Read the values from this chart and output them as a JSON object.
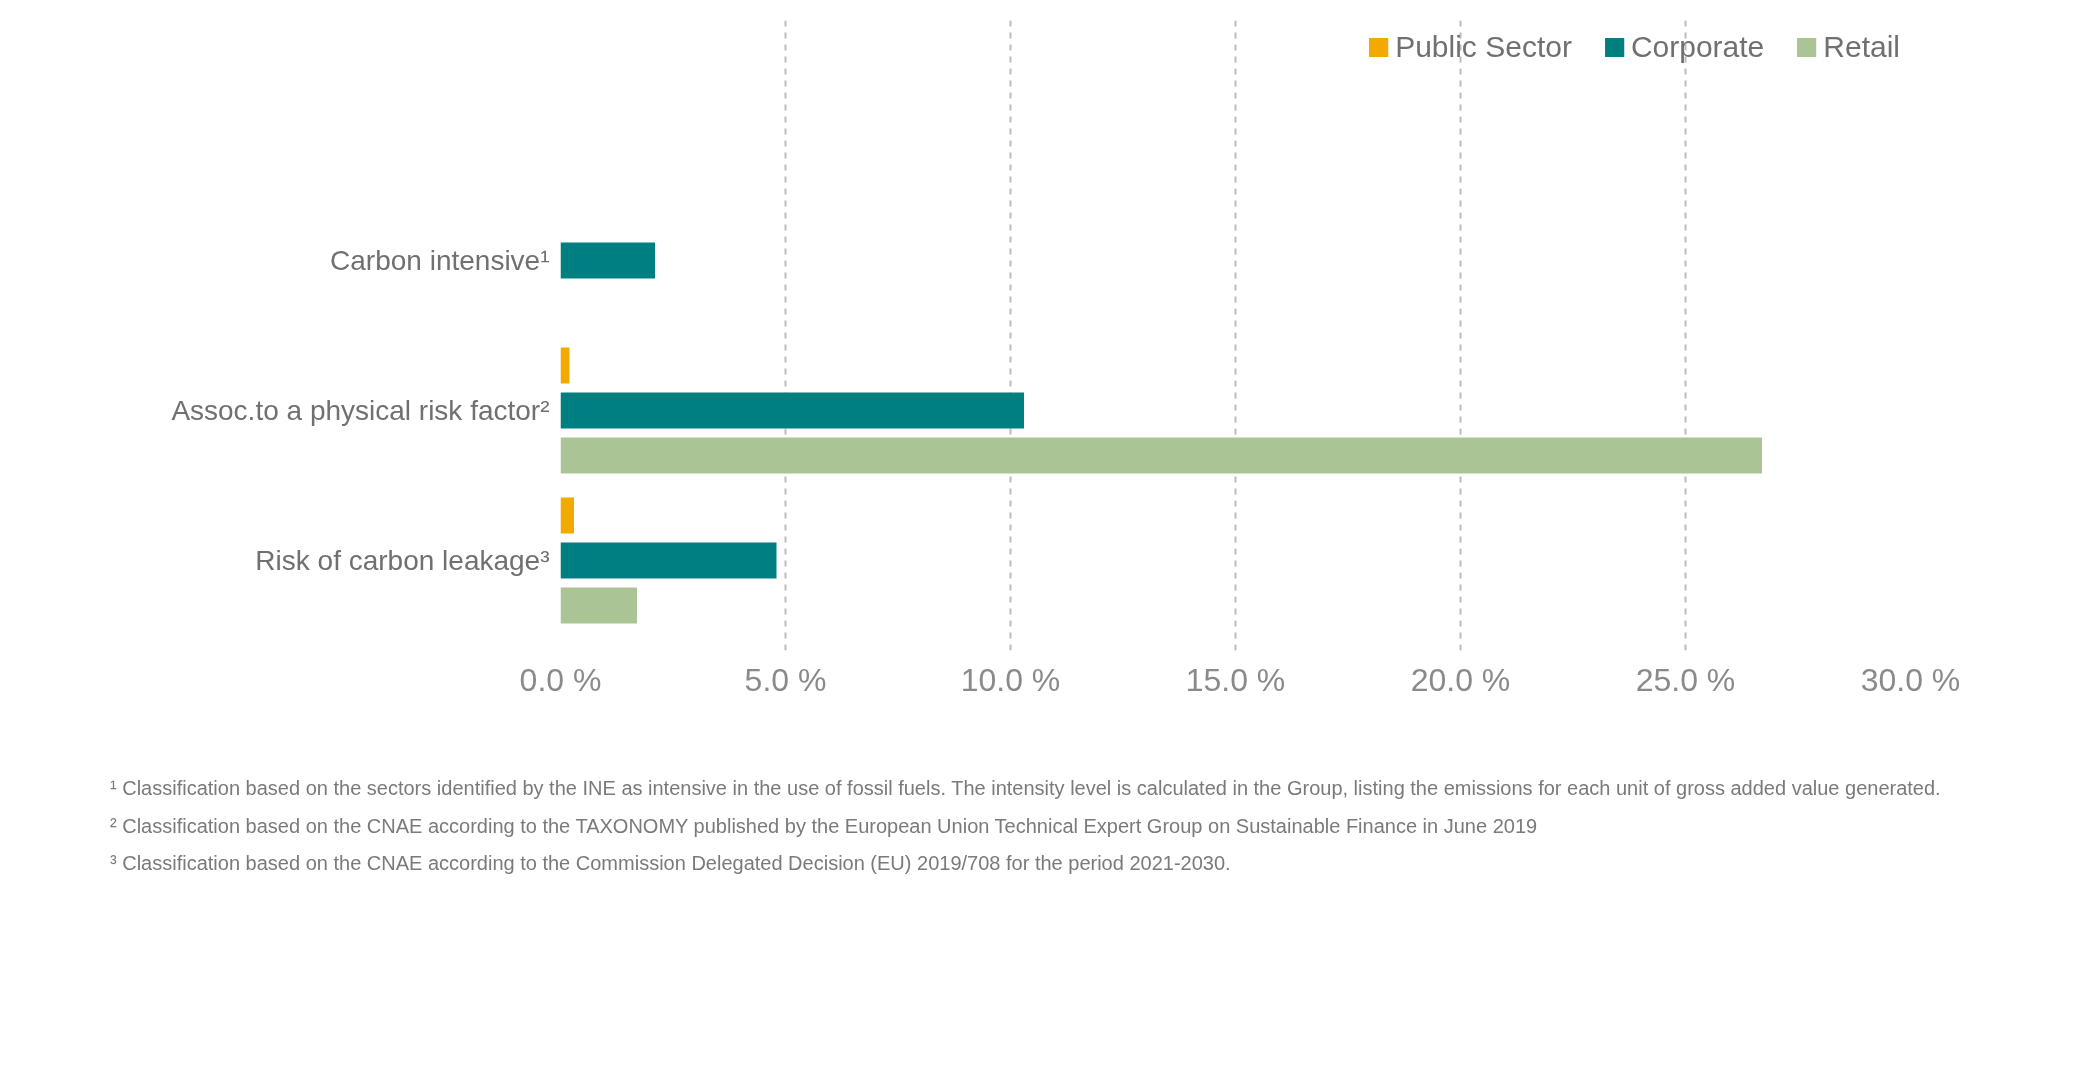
{
  "chart_data": {
    "type": "bar",
    "orientation": "horizontal",
    "categories": [
      "Carbon intensive¹",
      "Assoc.to a physical risk factor²",
      "Risk of carbon leakage³"
    ],
    "series": [
      {
        "name": "Public Sector",
        "color": "#f2a900",
        "values": [
          null,
          0.2,
          0.3
        ]
      },
      {
        "name": "Corporate",
        "color": "#007f80",
        "values": [
          2.1,
          10.3,
          4.8
        ]
      },
      {
        "name": "Retail",
        "color": "#abc495",
        "values": [
          null,
          26.7,
          1.7
        ]
      }
    ],
    "xlim": [
      0,
      30
    ],
    "xticks": [
      {
        "value": 0,
        "label": "0.0 %"
      },
      {
        "value": 5,
        "label": "5.0 %"
      },
      {
        "value": 10,
        "label": "10.0 %"
      },
      {
        "value": 15,
        "label": "15.0 %"
      },
      {
        "value": 20,
        "label": "20.0 %"
      },
      {
        "value": 25,
        "label": "25.0 %"
      },
      {
        "value": 30,
        "label": "30.0 %"
      }
    ],
    "grid": "x",
    "legend": "top right",
    "annotations": [
      "¹ Classification based on the sectors identified by the INE as intensive in the use of fossil fuels. The intensity level is calculated in the Group, listing the emissions for each unit of gross added value generated.",
      "² Classification based on the CNAE according to the TAXONOMY published by the European Union Technical Expert Group on Sustainable Finance in June 2019",
      "³ Classification based on the CNAE according to the Commission Delegated Decision (EU) 2019/708 for the period 2021-2030."
    ]
  }
}
